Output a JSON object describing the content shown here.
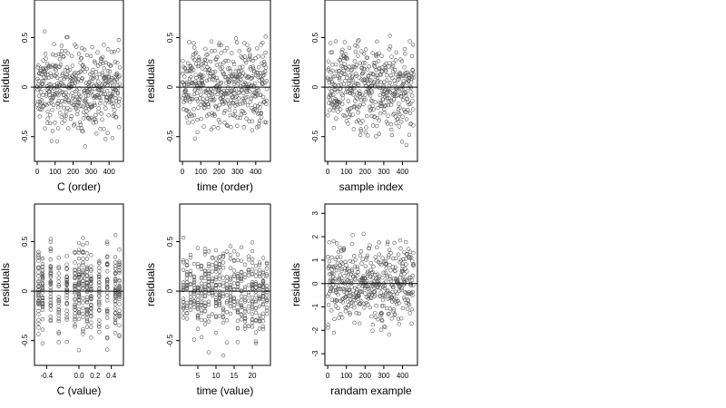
{
  "chart_data": [
    {
      "type": "scatter",
      "xlabel": "C (order)",
      "ylabel": "residuals",
      "xlim": [
        -15,
        480
      ],
      "ylim": [
        -0.75,
        0.88
      ],
      "xticks": [
        0,
        100,
        200,
        300,
        400
      ],
      "xtick_labels": [
        "0",
        "100",
        "200",
        "300",
        "400"
      ],
      "yticks": [
        -0.5,
        0,
        0.5
      ],
      "ytick_labels": [
        "-0.5",
        "0",
        "0.5"
      ],
      "hline": 0,
      "point_count": 460,
      "x_range": [
        0,
        460
      ],
      "x_distribution": "index",
      "y_range": [
        -0.7,
        0.82
      ],
      "points_color": "#555555"
    },
    {
      "type": "scatter",
      "xlabel": "time (order)",
      "ylabel": "residuals",
      "xlim": [
        -15,
        480
      ],
      "ylim": [
        -0.75,
        0.88
      ],
      "xticks": [
        0,
        100,
        200,
        300,
        400
      ],
      "xtick_labels": [
        "0",
        "100",
        "200",
        "300",
        "400"
      ],
      "yticks": [
        -0.5,
        0,
        0.5
      ],
      "ytick_labels": [
        "-0.5",
        "0",
        "0.5"
      ],
      "hline": 0,
      "point_count": 460,
      "x_range": [
        0,
        460
      ],
      "x_distribution": "index",
      "y_range": [
        -0.7,
        0.82
      ],
      "points_color": "#555555"
    },
    {
      "type": "scatter",
      "xlabel": "sample index",
      "ylabel": "residuals",
      "xlim": [
        -15,
        480
      ],
      "ylim": [
        -0.75,
        0.88
      ],
      "xticks": [
        0,
        100,
        200,
        300,
        400
      ],
      "xtick_labels": [
        "0",
        "100",
        "200",
        "300",
        "400"
      ],
      "yticks": [
        -0.5,
        0,
        0.5
      ],
      "ytick_labels": [
        "-0.5",
        "0",
        "0.5"
      ],
      "hline": 0,
      "point_count": 460,
      "x_range": [
        0,
        460
      ],
      "x_distribution": "index",
      "y_range": [
        -0.7,
        0.82
      ],
      "points_color": "#555555"
    },
    {
      "type": "scatter",
      "xlabel": "C (value)",
      "ylabel": "residuals",
      "xlim": [
        -0.55,
        0.55
      ],
      "ylim": [
        -0.75,
        0.88
      ],
      "xticks": [
        -0.4,
        0.0,
        0.2,
        0.4
      ],
      "xtick_labels": [
        "-0.4",
        "0.0",
        "0.2",
        "0.4"
      ],
      "yticks": [
        -0.5,
        0,
        0.5
      ],
      "ytick_labels": [
        "-0.5",
        "0",
        "0.5"
      ],
      "hline": 0,
      "point_count": 460,
      "x_range": [
        -0.5,
        0.5
      ],
      "x_distribution": "discrete",
      "x_levels": [
        -0.5,
        -0.45,
        -0.35,
        -0.25,
        -0.15,
        -0.05,
        0.0,
        0.05,
        0.1,
        0.15,
        0.25,
        0.35,
        0.45,
        0.5
      ],
      "y_range": [
        -0.7,
        0.82
      ],
      "points_color": "#555555"
    },
    {
      "type": "scatter",
      "xlabel": "time (value)",
      "ylabel": "residuals",
      "xlim": [
        0,
        25
      ],
      "ylim": [
        -0.75,
        0.88
      ],
      "xticks": [
        5,
        10,
        15,
        20
      ],
      "xtick_labels": [
        "5",
        "10",
        "15",
        "20"
      ],
      "yticks": [
        -0.5,
        0,
        0.5
      ],
      "ytick_labels": [
        "-0.5",
        "0",
        "0.5"
      ],
      "hline": 0,
      "point_count": 460,
      "x_range": [
        1,
        24
      ],
      "x_distribution": "discrete",
      "x_levels": [
        1,
        2,
        3,
        4,
        5,
        6,
        7,
        8,
        9,
        10,
        11,
        12,
        13,
        14,
        15,
        16,
        17,
        18,
        19,
        20,
        21,
        22,
        23,
        24
      ],
      "y_range": [
        -0.7,
        0.82
      ],
      "points_color": "#555555"
    },
    {
      "type": "scatter",
      "xlabel": "randam example",
      "ylabel": "residuals",
      "xlim": [
        -15,
        480
      ],
      "ylim": [
        -3.5,
        3.4
      ],
      "xticks": [
        0,
        100,
        200,
        300,
        400
      ],
      "xtick_labels": [
        "0",
        "100",
        "200",
        "300",
        "400"
      ],
      "yticks": [
        -3,
        -2,
        -1,
        0,
        1,
        2,
        3
      ],
      "ytick_labels": [
        "-3",
        "-2",
        "-1",
        "0",
        "1",
        "2",
        "3"
      ],
      "hline": 0,
      "point_count": 460,
      "x_range": [
        0,
        460
      ],
      "x_distribution": "index",
      "y_range": [
        -3.2,
        3.1
      ],
      "points_color": "#555555"
    }
  ]
}
